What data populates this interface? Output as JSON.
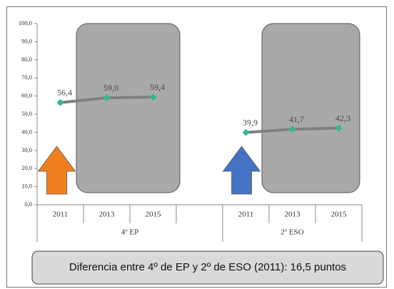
{
  "chart_data": {
    "type": "line",
    "groups": [
      {
        "name": "4º EP",
        "categories": [
          "2011",
          "2013",
          "2015",
          null
        ]
      },
      {
        "name": "2º ESO",
        "categories": [
          "2011",
          "2013",
          "2015"
        ]
      }
    ],
    "series": [
      {
        "color": "#7f7f7f",
        "marker_color": "#33b98a",
        "values": [
          56.4,
          59.0,
          59.4,
          null,
          39.9,
          41.7,
          42.3
        ],
        "value_labels": [
          "56,4",
          "59,0",
          "59,4",
          null,
          "39,9",
          "41,7",
          "42,3"
        ]
      }
    ],
    "ylim": [
      0,
      100
    ],
    "yticks": [
      {
        "value": 0,
        "label": "0,0"
      },
      {
        "value": 10,
        "label": "10,0"
      },
      {
        "value": 20,
        "label": "20,0"
      },
      {
        "value": 30,
        "label": "30,0"
      },
      {
        "value": 40,
        "label": "40,0"
      },
      {
        "value": 50,
        "label": "50,0"
      },
      {
        "value": 60,
        "label": "60,0"
      },
      {
        "value": 70,
        "label": "70,0"
      },
      {
        "value": 80,
        "label": "80,0"
      },
      {
        "value": 90,
        "label": "90,0"
      },
      {
        "value": 100,
        "label": "100,0"
      }
    ],
    "annotation": "Diferencia entre 4º de EP y 2º de ESO (2011): 16,5 puntos"
  }
}
